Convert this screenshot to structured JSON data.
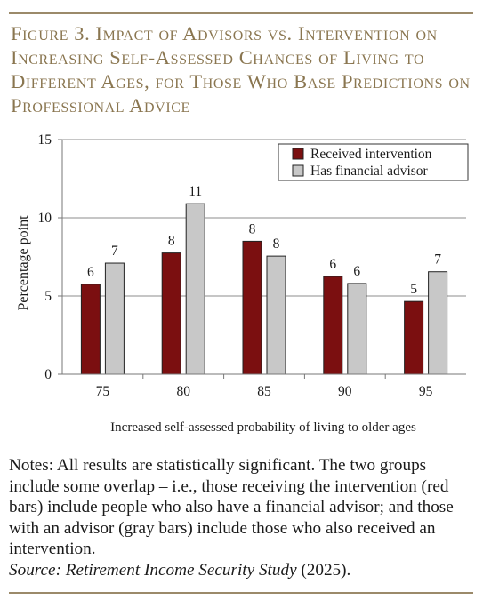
{
  "figure": {
    "title": "Figure 3. Impact of Advisors vs. Intervention on Increasing Self-Assessed Chances of Living to Different Ages, for Those Who Base Predictions on Professional Advice"
  },
  "chart_data": {
    "type": "bar",
    "categories": [
      "75",
      "80",
      "85",
      "90",
      "95"
    ],
    "series": [
      {
        "name": "Received intervention",
        "color": "#7b0f10",
        "values": [
          5.75,
          7.75,
          8.5,
          6.25,
          4.65
        ],
        "labels": [
          "6",
          "8",
          "8",
          "6",
          "5"
        ]
      },
      {
        "name": "Has financial advisor",
        "color": "#c8c8c8",
        "values": [
          7.1,
          10.9,
          7.55,
          5.8,
          6.55
        ],
        "labels": [
          "7",
          "11",
          "8",
          "6",
          "7"
        ]
      }
    ],
    "xlabel": "Increased self-assessed probability of living to older ages",
    "ylabel": "Percentage point",
    "ylim": [
      0,
      15
    ],
    "yticks": [
      "0",
      "5",
      "10",
      "15"
    ],
    "grid": true,
    "legend_position": "top-right"
  },
  "notes": {
    "text": "Notes: All results are statistically significant.  The two groups include some overlap – i.e., those receiving the intervention (red bars) include people who also have a financial advisor; and those with an advisor (gray bars) include those who also received an intervention.",
    "source_label": "Source: ",
    "source_title": "Retirement Income Security Study",
    "source_year": " (2025)."
  }
}
